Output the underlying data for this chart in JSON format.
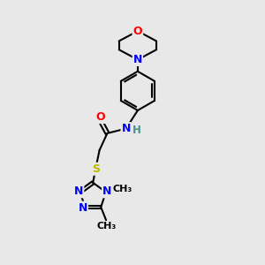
{
  "bg_color": "#e8e8e8",
  "atom_colors": {
    "C": "#000000",
    "N": "#0000ff",
    "O": "#ff0000",
    "S": "#b8b800",
    "H": "#4a9090"
  },
  "bond_color": "#000000",
  "bond_width": 1.5,
  "figsize": [
    3.0,
    3.0
  ],
  "dpi": 100,
  "xlim": [
    0,
    10
  ],
  "ylim": [
    0,
    10
  ]
}
